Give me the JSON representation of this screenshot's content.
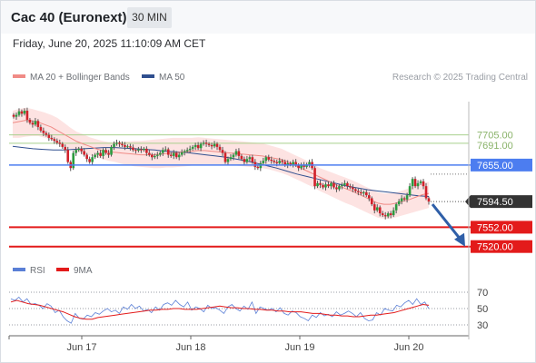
{
  "header": {
    "title": "Cac 40 (Euronext)",
    "timeframe": "30 MIN"
  },
  "datetime": "Friday, June 20, 2025 11:10:09 AM CET",
  "legend": {
    "ma20_label": "MA 20 + Bollinger Bands",
    "ma50_label": "MA 50",
    "rsi_label": "RSI",
    "rsi_ma_label": "9MA"
  },
  "research": "Research © 2025 Trading Central",
  "colors": {
    "ma20": "#f08b86",
    "bollinger_fill": "#fde3e2",
    "ma50": "#2f4f8f",
    "candle_up": "#2b9b3f",
    "candle_down": "#d0202a",
    "level_green": "#a8d08d",
    "level_blue": "#4c7df0",
    "level_red": "#e31b1b",
    "current": "#333333",
    "arrow": "#2f5fa8",
    "rsi": "#5a7fd6",
    "rsi_ma": "#e31b1b"
  },
  "chart_data": {
    "type": "candlestick",
    "x_tick_labels": [
      "Jun 17",
      "Jun 18",
      "Jun 19",
      "Jun 20"
    ],
    "ylim": [
      7500,
      7760
    ],
    "levels": [
      {
        "value": 7705.0,
        "label": "7705.00",
        "style": "green"
      },
      {
        "value": 7691.0,
        "label": "7691.00",
        "style": "green"
      },
      {
        "value": 7655.0,
        "label": "7655.00",
        "style": "blue"
      },
      {
        "value": 7594.5,
        "label": "7594.50",
        "style": "current"
      },
      {
        "value": 7552.0,
        "label": "7552.00",
        "style": "red"
      },
      {
        "value": 7520.0,
        "label": "7520.00",
        "style": "red"
      }
    ],
    "close": [
      7735,
      7738,
      7744,
      7740,
      7745,
      7730,
      7725,
      7722,
      7728,
      7718,
      7712,
      7708,
      7705,
      7700,
      7698,
      7695,
      7692,
      7690,
      7685,
      7680,
      7660,
      7650,
      7675,
      7680,
      7682,
      7678,
      7672,
      7665,
      7660,
      7668,
      7672,
      7675,
      7670,
      7680,
      7675,
      7672,
      7685,
      7690,
      7692,
      7690,
      7688,
      7685,
      7686,
      7684,
      7680,
      7679,
      7681,
      7680,
      7682,
      7675,
      7672,
      7668,
      7670,
      7672,
      7675,
      7680,
      7681,
      7672,
      7670,
      7675,
      7668,
      7672,
      7676,
      7678,
      7680,
      7682,
      7685,
      7688,
      7683,
      7690,
      7692,
      7690,
      7688,
      7686,
      7690,
      7685,
      7680,
      7675,
      7660,
      7665,
      7668,
      7672,
      7678,
      7670,
      7665,
      7660,
      7665,
      7668,
      7660,
      7652,
      7650,
      7658,
      7662,
      7668,
      7664,
      7662,
      7660,
      7658,
      7662,
      7660,
      7655,
      7658,
      7656,
      7660,
      7655,
      7650,
      7655,
      7652,
      7656,
      7660,
      7650,
      7620,
      7625,
      7622,
      7618,
      7623,
      7620,
      7625,
      7618,
      7615,
      7620,
      7622,
      7625,
      7620,
      7618,
      7615,
      7612,
      7610,
      7608,
      7610,
      7605,
      7600,
      7590,
      7580,
      7585,
      7575,
      7572,
      7570,
      7575,
      7572,
      7580,
      7590,
      7595,
      7600,
      7598,
      7605,
      7620,
      7632,
      7620,
      7625,
      7628,
      7620,
      7600,
      7594.5
    ],
    "ma20": [
      7725,
      7727,
      7729,
      7728,
      7726,
      7722,
      7718,
      7712,
      7706,
      7700,
      7694,
      7690,
      7686,
      7682,
      7679,
      7677,
      7676,
      7675,
      7674,
      7673,
      7672,
      7672,
      7672,
      7673,
      7674,
      7675,
      7676,
      7677,
      7678,
      7679,
      7679,
      7678,
      7677,
      7676,
      7675,
      7674,
      7673,
      7672,
      7671,
      7670,
      7668,
      7666,
      7664,
      7660,
      7655,
      7650,
      7645,
      7640,
      7635,
      7630,
      7625,
      7620,
      7616,
      7612,
      7607,
      7602,
      7597,
      7592,
      7590,
      7590,
      7592,
      7595,
      7598,
      7602,
      7606,
      7608
    ],
    "ma50": [
      7686,
      7684,
      7682,
      7681,
      7680,
      7680,
      7681,
      7682,
      7683,
      7684,
      7684,
      7683,
      7682,
      7681,
      7680,
      7678,
      7677,
      7676,
      7674,
      7672,
      7670,
      7668,
      7665,
      7662,
      7658,
      7654,
      7650,
      7645,
      7640,
      7636,
      7632,
      7628,
      7624,
      7620,
      7617,
      7614,
      7612,
      7610,
      7608,
      7606,
      7604,
      7603
    ],
    "bb_upper": [
      7745,
      7748,
      7750,
      7748,
      7745,
      7742,
      7738,
      7733,
      7725,
      7717,
      7710,
      7706,
      7701,
      7698,
      7695,
      7693,
      7693,
      7694,
      7694,
      7695,
      7695,
      7696,
      7697,
      7698,
      7699,
      7700,
      7700,
      7700,
      7700,
      7701,
      7700,
      7699,
      7698,
      7697,
      7696,
      7695,
      7694,
      7693,
      7692,
      7691,
      7688,
      7685,
      7682,
      7677,
      7672,
      7667,
      7662,
      7656,
      7650,
      7646,
      7642,
      7638,
      7634,
      7630,
      7625,
      7620,
      7615,
      7610,
      7608,
      7608,
      7610,
      7613,
      7617,
      7621,
      7625,
      7627
    ],
    "bb_lower": [
      7700,
      7700,
      7702,
      7703,
      7703,
      7700,
      7697,
      7692,
      7686,
      7682,
      7677,
      7674,
      7671,
      7668,
      7665,
      7662,
      7660,
      7657,
      7655,
      7653,
      7652,
      7651,
      7650,
      7650,
      7651,
      7651,
      7652,
      7653,
      7654,
      7655,
      7656,
      7656,
      7656,
      7656,
      7655,
      7654,
      7653,
      7652,
      7651,
      7650,
      7648,
      7645,
      7642,
      7638,
      7633,
      7628,
      7623,
      7618,
      7612,
      7607,
      7602,
      7597,
      7592,
      7588,
      7583,
      7578,
      7573,
      7568,
      7566,
      7566,
      7569,
      7572,
      7575,
      7578,
      7581,
      7584
    ],
    "rsi": {
      "yticks": [
        30,
        50,
        70
      ],
      "rsi": [
        62,
        60,
        64,
        58,
        62,
        55,
        56,
        54,
        50,
        56,
        53,
        45,
        48,
        40,
        35,
        32,
        44,
        38,
        37,
        42,
        40,
        45,
        43,
        47,
        50,
        46,
        48,
        44,
        52,
        49,
        55,
        50,
        53,
        47,
        49,
        45,
        52,
        48,
        55,
        57,
        54,
        60,
        55,
        52,
        58,
        48,
        52,
        50,
        46,
        54,
        50,
        51,
        48,
        44,
        52,
        55,
        50,
        47,
        53,
        49,
        58,
        44,
        52,
        50,
        48,
        50,
        46,
        51,
        44,
        42,
        47,
        45,
        40,
        38,
        35,
        42,
        39,
        45,
        41,
        43,
        40,
        46,
        42,
        44,
        47,
        44,
        40,
        45,
        38,
        35,
        36,
        45,
        42,
        50,
        48,
        47,
        54,
        52,
        57,
        60,
        55,
        62,
        55,
        58,
        50
      ],
      "rsi_ma": [
        58,
        60,
        58,
        56,
        55,
        54,
        52,
        50,
        48,
        46,
        43,
        40,
        38,
        37,
        37,
        39,
        40,
        41,
        42,
        43,
        44,
        45,
        46,
        47,
        48,
        48,
        49,
        49,
        50,
        50,
        49,
        49,
        49,
        50,
        51,
        52,
        53,
        52,
        51,
        51,
        50,
        50,
        49,
        49,
        48,
        48,
        47,
        47,
        46,
        46,
        46,
        45,
        44,
        44,
        43,
        42,
        42,
        41,
        41,
        40,
        40,
        41,
        42,
        42,
        43,
        44,
        45,
        47,
        49,
        51,
        53,
        55,
        54
      ]
    }
  }
}
